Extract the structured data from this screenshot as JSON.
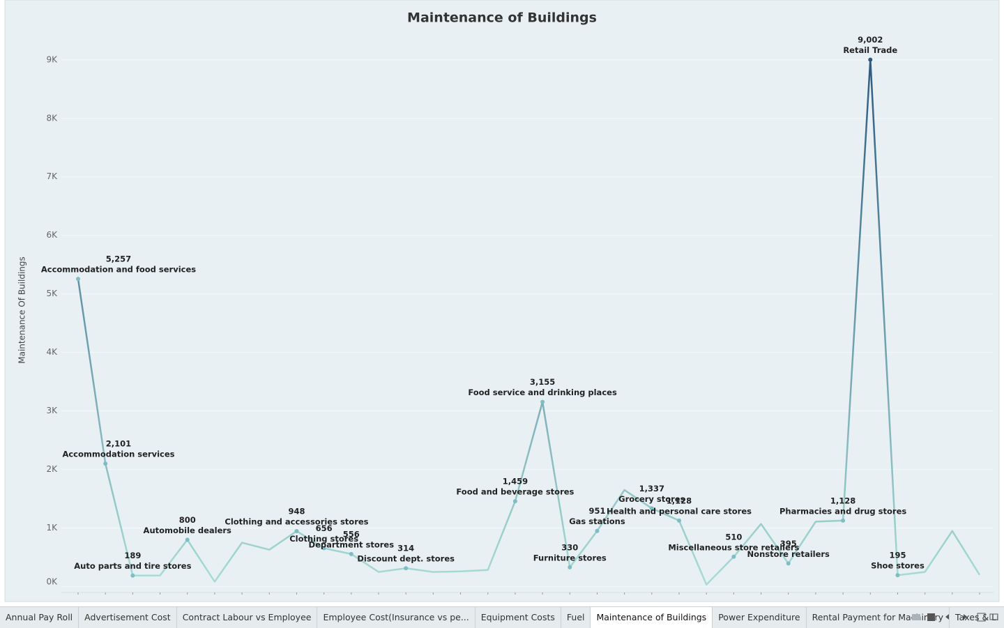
{
  "chart_data": {
    "type": "line",
    "title": "Maintenance of Buildings",
    "y_label": "Maintenance Of Buildings",
    "categories": [
      "Accommodation and food services",
      "Accommodation services",
      "Auto parts and tire stores",
      null,
      "Automobile dealers",
      null,
      null,
      null,
      "Clothing and accessories stores",
      "Clothing stores",
      "Department stores",
      null,
      "Discount dept. stores",
      null,
      null,
      null,
      "Food and beverage stores",
      "Food service and drinking places",
      "Furniture stores",
      "Gas stations",
      null,
      "Grocery stores",
      "Health and personal care stores",
      null,
      "Miscellaneous store retailers",
      null,
      "Nonstore retailers",
      null,
      "Pharmacies and drug stores",
      "Retail Trade",
      "Shoe stores",
      null,
      null,
      null
    ],
    "values": [
      5257,
      2101,
      189,
      190,
      800,
      85,
      750,
      630,
      948,
      656,
      556,
      250,
      314,
      250,
      260,
      285,
      1459,
      3155,
      330,
      951,
      1650,
      1337,
      1128,
      35,
      510,
      1070,
      395,
      1110,
      1128,
      9002,
      195,
      250,
      950,
      200
    ],
    "value_labels": [
      "5,257",
      "2,101",
      "189",
      null,
      "800",
      null,
      null,
      null,
      "948",
      "656",
      "556",
      null,
      "314",
      null,
      null,
      null,
      "1,459",
      "3,155",
      "330",
      "951",
      null,
      "1,337",
      "1,128",
      null,
      "510",
      null,
      "395",
      null,
      "1,128",
      "9,002",
      "195",
      null,
      null,
      null
    ],
    "ylim": [
      -100,
      9450
    ],
    "yticks": [
      {
        "value": 0,
        "label": "0K"
      },
      {
        "value": 1000,
        "label": "1K"
      },
      {
        "value": 2000,
        "label": "2K"
      },
      {
        "value": 3000,
        "label": "3K"
      },
      {
        "value": 4000,
        "label": "4K"
      },
      {
        "value": 5000,
        "label": "5K"
      },
      {
        "value": 6000,
        "label": "6K"
      },
      {
        "value": 7000,
        "label": "7K"
      },
      {
        "value": 8000,
        "label": "8K"
      },
      {
        "value": 9000,
        "label": "9K"
      }
    ],
    "grid": true,
    "color_range": [
      "#a9ddd6",
      "#2d5a80"
    ]
  },
  "tabs": [
    "Annual Pay Roll",
    "Advertisement Cost",
    "Contract Labour vs Employee",
    "Employee Cost(Insurance vs pe...",
    "Equipment Costs",
    "Fuel",
    "Maintenance of Buildings",
    "Power Expenditure",
    "Rental Payment for Machinary",
    "Taxes & Li"
  ],
  "active_tab": 6
}
